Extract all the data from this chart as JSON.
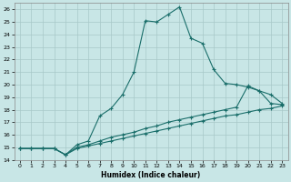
{
  "xlabel": "Humidex (Indice chaleur)",
  "xlim": [
    -0.5,
    23.5
  ],
  "ylim": [
    14,
    26.5
  ],
  "yticks": [
    14,
    15,
    16,
    17,
    18,
    19,
    20,
    21,
    22,
    23,
    24,
    25,
    26
  ],
  "xticks": [
    0,
    1,
    2,
    3,
    4,
    5,
    6,
    7,
    8,
    9,
    10,
    11,
    12,
    13,
    14,
    15,
    16,
    17,
    18,
    19,
    20,
    21,
    22,
    23
  ],
  "bg_color": "#c8e6e6",
  "line_color": "#1a6e6a",
  "grid_color": "#b8d8d8",
  "series1_x": [
    0,
    1,
    2,
    3,
    4,
    5,
    6,
    7,
    8,
    9,
    10,
    11,
    12,
    13,
    14,
    15,
    16,
    17,
    18,
    19,
    20,
    21,
    22,
    23
  ],
  "series1_y": [
    14.9,
    14.9,
    14.9,
    14.9,
    14.4,
    15.2,
    15.5,
    17.5,
    18.1,
    19.2,
    21.0,
    25.1,
    25.0,
    25.6,
    26.2,
    23.7,
    23.3,
    21.2,
    20.1,
    20.0,
    19.8,
    19.5,
    18.5,
    18.4
  ],
  "series2_x": [
    0,
    1,
    2,
    3,
    4,
    5,
    6,
    7,
    8,
    9,
    10,
    11,
    12,
    13,
    14,
    15,
    16,
    17,
    18,
    19,
    20,
    21,
    22,
    23
  ],
  "series2_y": [
    14.9,
    14.9,
    14.9,
    14.9,
    14.4,
    15.0,
    15.2,
    15.5,
    15.8,
    16.0,
    16.2,
    16.5,
    16.7,
    17.0,
    17.2,
    17.4,
    17.6,
    17.8,
    18.0,
    18.2,
    19.9,
    19.5,
    19.2,
    18.5
  ],
  "series3_x": [
    0,
    1,
    2,
    3,
    4,
    5,
    6,
    7,
    8,
    9,
    10,
    11,
    12,
    13,
    14,
    15,
    16,
    17,
    18,
    19,
    20,
    21,
    22,
    23
  ],
  "series3_y": [
    14.9,
    14.9,
    14.9,
    14.9,
    14.4,
    14.9,
    15.1,
    15.3,
    15.5,
    15.7,
    15.9,
    16.1,
    16.3,
    16.5,
    16.7,
    16.9,
    17.1,
    17.3,
    17.5,
    17.6,
    17.8,
    18.0,
    18.1,
    18.3
  ]
}
